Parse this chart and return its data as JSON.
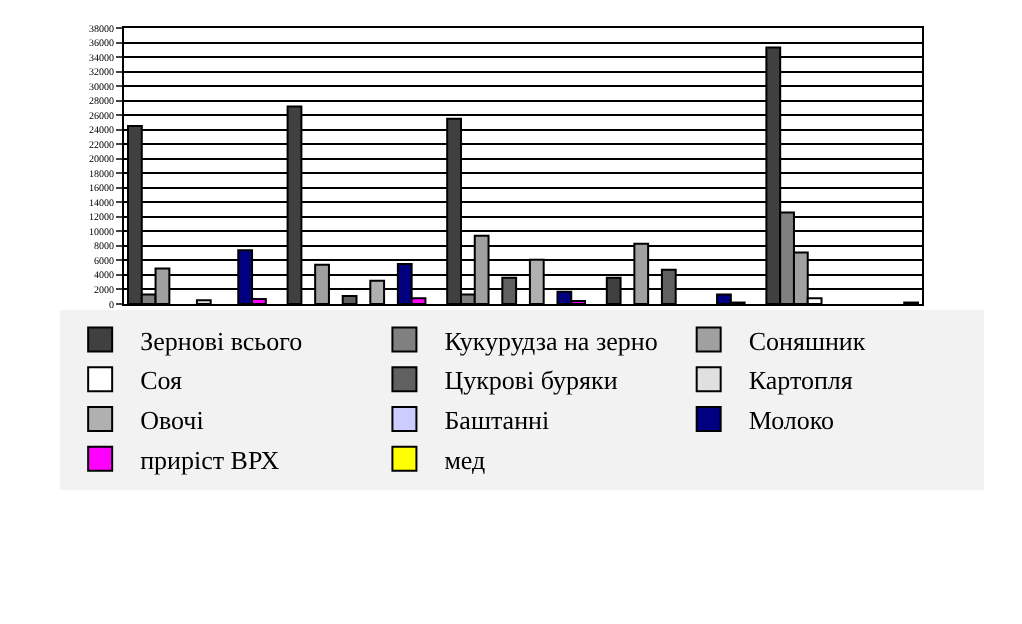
{
  "chart_data": {
    "type": "bar",
    "categories": [
      null,
      null,
      null,
      null,
      null
    ],
    "series": [
      {
        "name": "Зернові всього",
        "color": "#404040",
        "values": [
          24500,
          27200,
          25500,
          3600,
          35300
        ]
      },
      {
        "name": "Кукурудза на зерно",
        "color": "#808080",
        "values": [
          1300,
          null,
          1300,
          null,
          12600
        ]
      },
      {
        "name": "Соняшник",
        "color": "#a0a0a0",
        "values": [
          4900,
          5400,
          9400,
          8300,
          7100
        ]
      },
      {
        "name": "Соя",
        "color": "#ffffff",
        "values": [
          null,
          null,
          null,
          null,
          800
        ]
      },
      {
        "name": "Цукрові буряки",
        "color": "#606060",
        "values": [
          null,
          1100,
          3600,
          4700,
          null
        ]
      },
      {
        "name": "Картопля",
        "color": "#e0e0e0",
        "values": [
          500,
          null,
          null,
          null,
          null
        ]
      },
      {
        "name": "Овочі",
        "color": "#b0b0b0",
        "values": [
          null,
          3200,
          6100,
          null,
          null
        ]
      },
      {
        "name": "Баштанні",
        "color": "#ccccff",
        "values": [
          null,
          null,
          null,
          null,
          null
        ]
      },
      {
        "name": "Молоко",
        "color": "#000080",
        "values": [
          7400,
          5500,
          1700,
          1300,
          null
        ]
      },
      {
        "name": "приріст ВРХ",
        "color": "#ff00ff",
        "values": [
          700,
          800,
          400,
          200,
          null
        ]
      },
      {
        "name": "мед",
        "color": "#ffff00",
        "values": [
          null,
          null,
          null,
          null,
          200
        ]
      }
    ],
    "ylim": [
      0,
      38000
    ],
    "yticks": [
      0,
      2000,
      4000,
      6000,
      8000,
      10000,
      12000,
      14000,
      16000,
      18000,
      20000,
      22000,
      24000,
      26000,
      28000,
      30000,
      32000,
      34000,
      36000,
      38000
    ],
    "grid": "y",
    "legend": "bottom"
  }
}
